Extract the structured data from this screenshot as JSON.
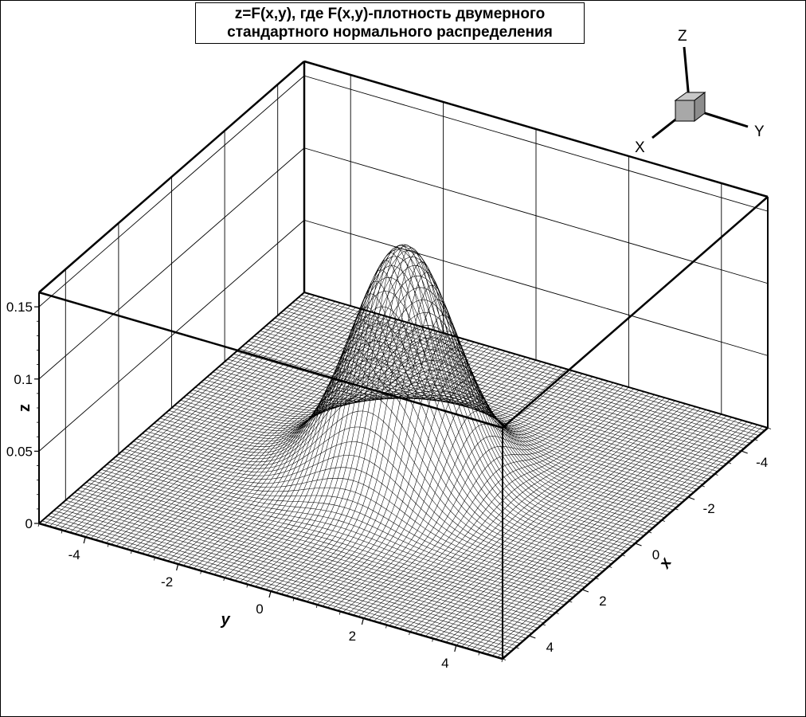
{
  "chart_data": {
    "type": "surface",
    "title_lines": [
      "z=F(x,y), где F(x,y)-плотность двумерного",
      "стандартного нормального распределения"
    ],
    "function": "z = exp(-(x^2+y^2)/2) / (2*pi)",
    "x_range": [
      -5,
      5
    ],
    "y_range": [
      -5,
      5
    ],
    "z_range": [
      0,
      0.16
    ],
    "peak": {
      "x": 0,
      "y": 0,
      "z": 0.159
    },
    "xlabel": "x",
    "ylabel": "y",
    "zlabel": "z",
    "x_ticks": [
      -4,
      -2,
      0,
      2,
      4
    ],
    "y_ticks": [
      -4,
      -2,
      0,
      2,
      4
    ],
    "z_ticks": [
      0,
      0.05,
      0.1,
      0.15
    ],
    "z_tick_labels": [
      "0",
      "0.05",
      "0.1",
      "0.15"
    ],
    "grid": true,
    "mesh_color": "#000000",
    "orientation_triad": {
      "labels": [
        "Z",
        "Y",
        "X"
      ],
      "cube_color": "#a8a8a8"
    }
  }
}
